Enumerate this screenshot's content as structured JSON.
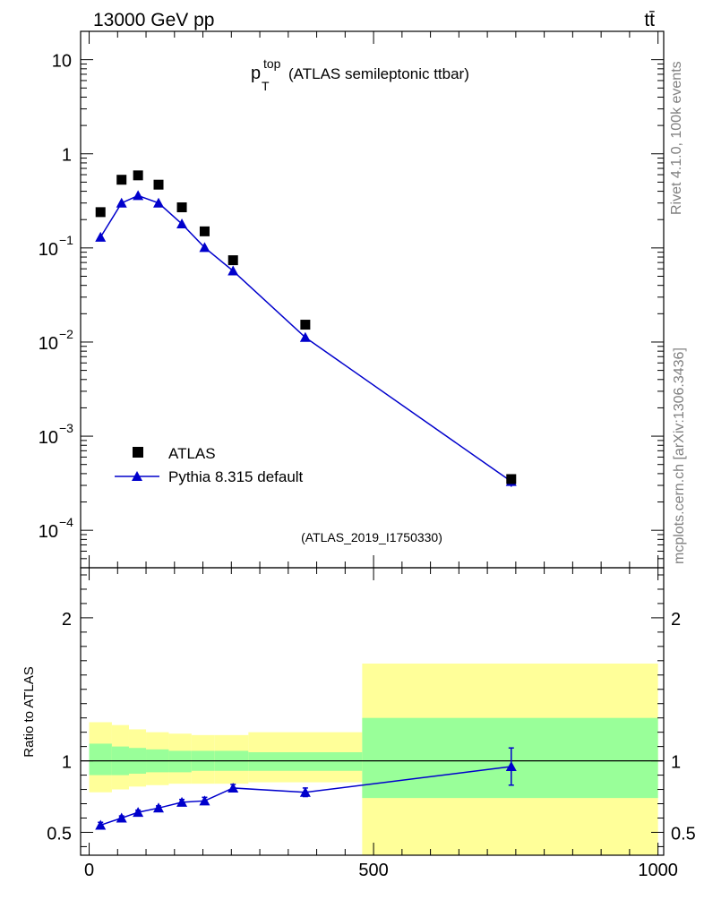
{
  "header": {
    "energy_label": "13000 GeV pp",
    "process_label": "tt̄"
  },
  "side_labels": {
    "rivet": "Rivet 4.1.0,  100k events",
    "mcplots": "mcplots.cern.ch [arXiv:1306.3436]"
  },
  "colors": {
    "mc": "#0000cc",
    "data": "#000000",
    "band_inner": "#99ff99",
    "band_outer": "#ffff99",
    "side_text": "#808080"
  },
  "chart_data": [
    {
      "type": "scatter",
      "title_main": "p",
      "title_sup": "top",
      "title_sub": "T",
      "title_rest": "(ATLAS semileptonic ttbar)",
      "analysis_id": "(ATLAS_2019_I1750330)",
      "yscale": "log",
      "ylim": [
        4e-05,
        20
      ],
      "xlim": [
        -15,
        1010
      ],
      "yticks": [
        {
          "v": 10,
          "base": "10",
          "exp": ""
        },
        {
          "v": 1,
          "base": "1",
          "exp": ""
        },
        {
          "v": 0.1,
          "base": "10",
          "exp": "−1"
        },
        {
          "v": 0.01,
          "base": "10",
          "exp": "−2"
        },
        {
          "v": 0.001,
          "base": "10",
          "exp": "−3"
        },
        {
          "v": 0.0001,
          "base": "10",
          "exp": "−4"
        }
      ],
      "legend": {
        "position": "bottom-left",
        "data_label": "ATLAS",
        "mc_label": "Pythia 8.315 default"
      },
      "series": [
        {
          "name": "ATLAS",
          "x": [
            20,
            57,
            86,
            122,
            163,
            203,
            253,
            380,
            742
          ],
          "y": [
            0.24,
            0.53,
            0.59,
            0.47,
            0.27,
            0.15,
            0.074,
            0.0153,
            0.00035
          ]
        },
        {
          "name": "Pythia 8.315 default",
          "x": [
            20,
            57,
            86,
            122,
            163,
            203,
            253,
            380,
            742
          ],
          "y": [
            0.13,
            0.3,
            0.36,
            0.3,
            0.18,
            0.101,
            0.057,
            0.0112,
            0.00033
          ],
          "yerr": [
            0,
            0,
            0,
            0,
            0,
            0,
            0,
            0,
            4e-05
          ]
        }
      ]
    },
    {
      "type": "scatter",
      "ylabel": "Ratio to ATLAS",
      "ylim": [
        0.34,
        2.35
      ],
      "xlim": [
        -15,
        1010
      ],
      "yticks": [
        "0.5",
        "1",
        "2"
      ],
      "ytick_values": [
        0.5,
        1,
        2
      ],
      "xticks": [
        "0",
        "500",
        "1000"
      ],
      "xtick_values": [
        0,
        500,
        1000
      ],
      "reference_line": 1,
      "bands": [
        {
          "x0": 0,
          "x1": 40,
          "inner": [
            0.9,
            1.12
          ],
          "outer": [
            0.78,
            1.27
          ]
        },
        {
          "x0": 40,
          "x1": 70,
          "inner": [
            0.9,
            1.1
          ],
          "outer": [
            0.8,
            1.25
          ]
        },
        {
          "x0": 70,
          "x1": 100,
          "inner": [
            0.91,
            1.09
          ],
          "outer": [
            0.82,
            1.22
          ]
        },
        {
          "x0": 100,
          "x1": 140,
          "inner": [
            0.92,
            1.08
          ],
          "outer": [
            0.83,
            1.2
          ]
        },
        {
          "x0": 140,
          "x1": 180,
          "inner": [
            0.92,
            1.07
          ],
          "outer": [
            0.84,
            1.19
          ]
        },
        {
          "x0": 180,
          "x1": 220,
          "inner": [
            0.93,
            1.07
          ],
          "outer": [
            0.84,
            1.18
          ]
        },
        {
          "x0": 220,
          "x1": 280,
          "inner": [
            0.93,
            1.07
          ],
          "outer": [
            0.84,
            1.18
          ]
        },
        {
          "x0": 280,
          "x1": 480,
          "inner": [
            0.93,
            1.06
          ],
          "outer": [
            0.85,
            1.2
          ]
        },
        {
          "x0": 480,
          "x1": 1000,
          "inner": [
            0.74,
            1.3
          ],
          "outer": [
            0.34,
            1.68
          ]
        }
      ],
      "series": [
        {
          "name": "Pythia 8.315 default",
          "x": [
            20,
            57,
            86,
            122,
            163,
            203,
            253,
            380,
            742
          ],
          "y": [
            0.55,
            0.6,
            0.64,
            0.67,
            0.71,
            0.72,
            0.81,
            0.78,
            0.96
          ],
          "yerr": [
            0.02,
            0.015,
            0.015,
            0.015,
            0.02,
            0.025,
            0.025,
            0.03,
            0.13
          ]
        }
      ]
    }
  ]
}
